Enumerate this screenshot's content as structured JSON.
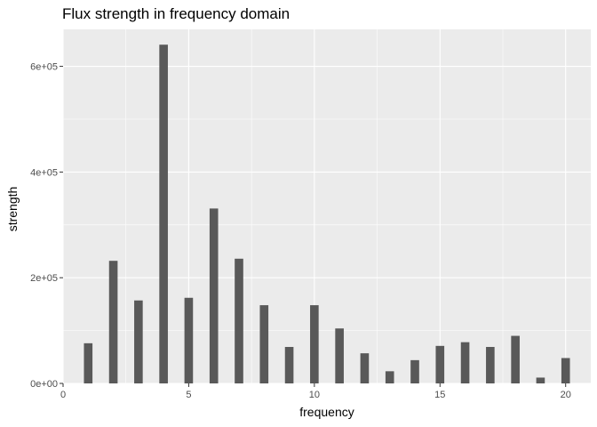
{
  "chart_data": {
    "type": "bar",
    "title": "Flux strength in frequency domain",
    "xlabel": "frequency",
    "ylabel": "strength",
    "x": [
      1,
      2,
      3,
      4,
      5,
      6,
      7,
      8,
      9,
      10,
      11,
      12,
      13,
      14,
      15,
      16,
      17,
      18,
      19,
      20
    ],
    "values": [
      76000,
      232000,
      157000,
      641000,
      162000,
      331000,
      236000,
      148000,
      69000,
      148000,
      104000,
      57000,
      23000,
      44000,
      71000,
      78000,
      69000,
      90000,
      11000,
      48000
    ],
    "xlim": [
      0,
      21
    ],
    "ylim": [
      0,
      670000
    ],
    "x_ticks": [
      0,
      5,
      10,
      15,
      20
    ],
    "x_tick_labels": [
      "0",
      "5",
      "10",
      "15",
      "20"
    ],
    "y_ticks": [
      0,
      200000,
      400000,
      600000
    ],
    "y_tick_labels": [
      "0e+00",
      "2e+05",
      "4e+05",
      "6e+05"
    ],
    "grid": true,
    "colors": {
      "bar": "#595959",
      "panel": "#ebebeb",
      "grid": "#ffffff"
    }
  }
}
